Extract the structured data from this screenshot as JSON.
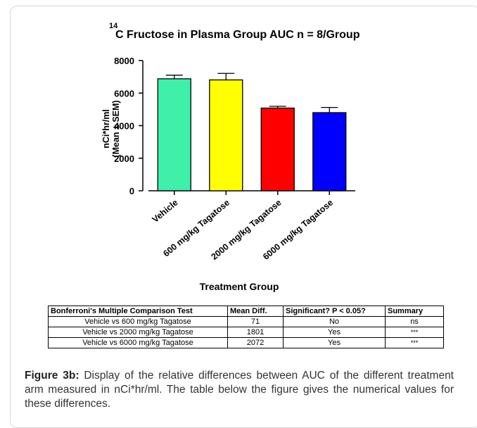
{
  "chart_data": {
    "type": "bar",
    "title_superscript": "14",
    "title": "C Fructose in Plasma Group AUC n = 8/Group",
    "ylabel_line1": "nCi*hr/ml",
    "ylabel_line2": "(Mean ± SEM)",
    "xlabel": "Treatment  Group",
    "ylim": [
      0,
      8000
    ],
    "yticks": [
      0,
      2000,
      4000,
      6000,
      8000
    ],
    "ytick_labels": [
      "0",
      "2000",
      "4000",
      "6000",
      "8000"
    ],
    "categories": [
      "Vehicle",
      "600 mg/kg Tagatose",
      "2000 mg/kg Tagatose",
      "6000 mg/kg Tagatose"
    ],
    "values": [
      6880,
      6810,
      5080,
      4800
    ],
    "errors": [
      220,
      400,
      110,
      320
    ],
    "colors": [
      "#3ef0aa",
      "#ffff00",
      "#ff0000",
      "#0000ff"
    ],
    "grid": false,
    "legend": "none"
  },
  "table": {
    "headers": [
      "Bonferroni's Multiple Comparison Test",
      "Mean Diff.",
      "Significant? P < 0.05?",
      "Summary"
    ],
    "rows": [
      [
        "Vehicle vs 600 mg/kg Tagatose",
        "71",
        "No",
        "ns"
      ],
      [
        "Vehicle vs 2000 mg/kg Tagatose",
        "1801",
        "Yes",
        "***"
      ],
      [
        "Vehicle vs 6000 mg/kg Tagatose",
        "2072",
        "Yes",
        "***"
      ]
    ]
  },
  "caption": {
    "label": "Figure 3b:",
    "text": " Display of the relative differences between AUC of the different treatment arm measured in nCi*hr/ml.  The table below the figure gives the numerical values for these differences."
  }
}
